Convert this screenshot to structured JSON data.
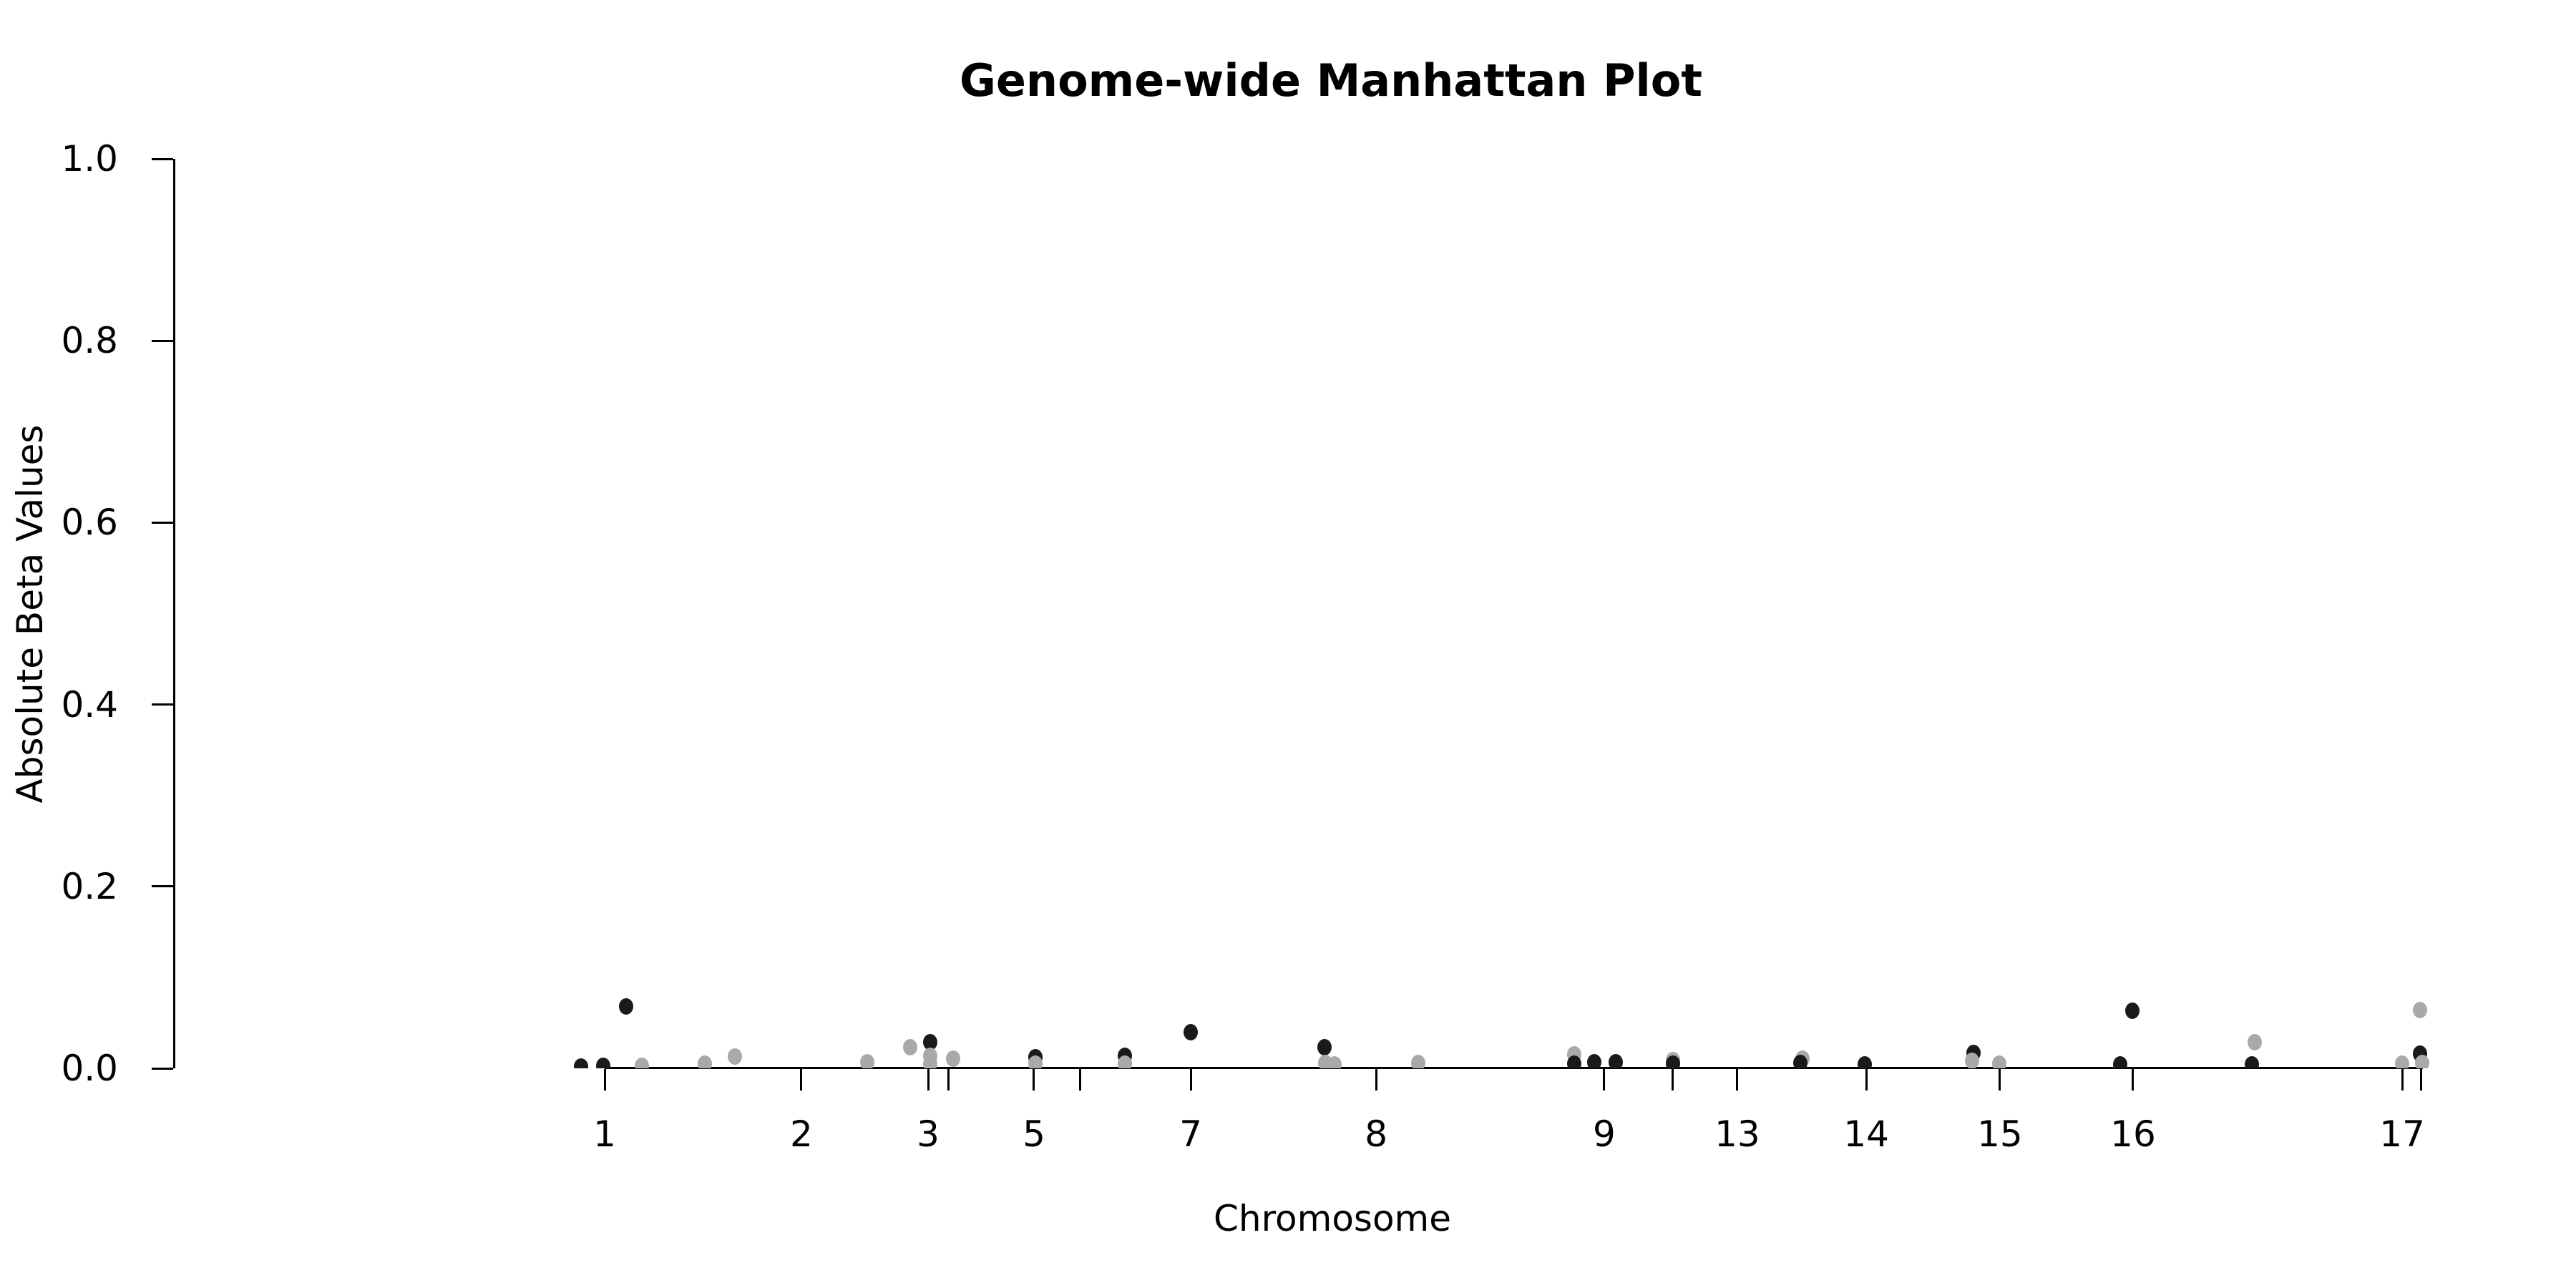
{
  "chart_data": {
    "type": "scatter",
    "title": "Genome-wide Manhattan Plot",
    "xlabel": "Chromosome",
    "ylabel": "Absolute Beta Values",
    "ylim": [
      0.0,
      1.0
    ],
    "yticks": [
      0.0,
      0.2,
      0.4,
      0.6,
      0.8,
      1.0
    ],
    "grid": "off",
    "legend": "none",
    "point_colors": {
      "dark": "#1a1a1a",
      "light": "#a9a9a9"
    },
    "xticks": [
      {
        "label": "1",
        "pos": 0.0
      },
      {
        "label": "2",
        "pos": 0.1083
      },
      {
        "label": "3",
        "pos": 0.1781
      },
      {
        "label": "",
        "pos": 0.1895
      },
      {
        "label": "5",
        "pos": 0.2364
      },
      {
        "label": "",
        "pos": 0.262
      },
      {
        "label": "7",
        "pos": 0.3227
      },
      {
        "label": "8",
        "pos": 0.4248
      },
      {
        "label": "9",
        "pos": 0.5504
      },
      {
        "label": "",
        "pos": 0.5882
      },
      {
        "label": "13",
        "pos": 0.6237
      },
      {
        "label": "14",
        "pos": 0.6947
      },
      {
        "label": "15",
        "pos": 0.7683
      },
      {
        "label": "16",
        "pos": 0.8416
      },
      {
        "label": "17",
        "pos": 0.9898
      },
      {
        "label": "",
        "pos": 1.0
      }
    ],
    "points": [
      {
        "pos": -0.013,
        "beta": 0.002,
        "shade": "dark"
      },
      {
        "pos": -0.0008,
        "beta": 0.003,
        "shade": "dark"
      },
      {
        "pos": 0.0118,
        "beta": 0.068,
        "shade": "dark"
      },
      {
        "pos": 0.0205,
        "beta": 0.003,
        "shade": "light"
      },
      {
        "pos": 0.0552,
        "beta": 0.005,
        "shade": "light"
      },
      {
        "pos": 0.0717,
        "beta": 0.013,
        "shade": "light"
      },
      {
        "pos": 0.1446,
        "beta": 0.007,
        "shade": "light"
      },
      {
        "pos": 0.1682,
        "beta": 0.023,
        "shade": "light"
      },
      {
        "pos": 0.1793,
        "beta": 0.029,
        "shade": "dark"
      },
      {
        "pos": 0.1793,
        "beta": 0.014,
        "shade": "light"
      },
      {
        "pos": 0.1793,
        "beta": 0.005,
        "shade": "light"
      },
      {
        "pos": 0.1919,
        "beta": 0.011,
        "shade": "light"
      },
      {
        "pos": 0.2372,
        "beta": 0.012,
        "shade": "dark"
      },
      {
        "pos": 0.2372,
        "beta": 0.005,
        "shade": "light"
      },
      {
        "pos": 0.2864,
        "beta": 0.014,
        "shade": "dark"
      },
      {
        "pos": 0.2864,
        "beta": 0.005,
        "shade": "light"
      },
      {
        "pos": 0.3227,
        "beta": 0.04,
        "shade": "dark"
      },
      {
        "pos": 0.3964,
        "beta": 0.023,
        "shade": "dark"
      },
      {
        "pos": 0.3968,
        "beta": 0.006,
        "shade": "light"
      },
      {
        "pos": 0.4019,
        "beta": 0.004,
        "shade": "light"
      },
      {
        "pos": 0.448,
        "beta": 0.006,
        "shade": "light"
      },
      {
        "pos": 0.5339,
        "beta": 0.015,
        "shade": "light"
      },
      {
        "pos": 0.5339,
        "beta": 0.005,
        "shade": "dark"
      },
      {
        "pos": 0.5449,
        "beta": 0.007,
        "shade": "dark"
      },
      {
        "pos": 0.5567,
        "beta": 0.007,
        "shade": "dark"
      },
      {
        "pos": 0.5882,
        "beta": 0.009,
        "shade": "light"
      },
      {
        "pos": 0.5882,
        "beta": 0.005,
        "shade": "dark"
      },
      {
        "pos": 0.6596,
        "beta": 0.011,
        "shade": "light"
      },
      {
        "pos": 0.6584,
        "beta": 0.006,
        "shade": "dark"
      },
      {
        "pos": 0.6939,
        "beta": 0.004,
        "shade": "dark"
      },
      {
        "pos": 0.7538,
        "beta": 0.017,
        "shade": "dark"
      },
      {
        "pos": 0.753,
        "beta": 0.008,
        "shade": "light"
      },
      {
        "pos": 0.768,
        "beta": 0.005,
        "shade": "light"
      },
      {
        "pos": 0.8345,
        "beta": 0.004,
        "shade": "dark"
      },
      {
        "pos": 0.8412,
        "beta": 0.063,
        "shade": "dark"
      },
      {
        "pos": 0.9086,
        "beta": 0.029,
        "shade": "light"
      },
      {
        "pos": 0.907,
        "beta": 0.004,
        "shade": "dark"
      },
      {
        "pos": 0.9898,
        "beta": 0.005,
        "shade": "light"
      },
      {
        "pos": 0.9996,
        "beta": 0.064,
        "shade": "light"
      },
      {
        "pos": 0.9996,
        "beta": 0.016,
        "shade": "dark"
      },
      {
        "pos": 1.0008,
        "beta": 0.006,
        "shade": "light"
      }
    ]
  }
}
